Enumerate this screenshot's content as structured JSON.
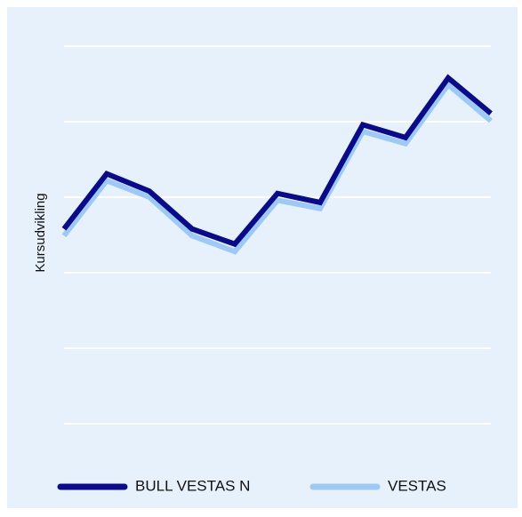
{
  "chart_data": {
    "type": "line",
    "y_label": "Kursudvikling",
    "categories": [
      null,
      null,
      null,
      null,
      null,
      null,
      null,
      null,
      null,
      null,
      null
    ],
    "series": [
      {
        "name": "VESTAS",
        "color": "#9ccaf5",
        "values": [
          2.49,
          3.22,
          3.0,
          2.49,
          2.28,
          2.96,
          2.85,
          3.87,
          3.71,
          4.49,
          4.01
        ]
      },
      {
        "name": "BULL VESTAS N",
        "color": "#0a0a8c",
        "values": [
          2.58,
          3.31,
          3.08,
          2.58,
          2.38,
          3.05,
          2.93,
          3.96,
          3.79,
          4.58,
          4.11
        ]
      }
    ],
    "ylim": [
      0,
      5
    ],
    "yticks": [
      0,
      1,
      2,
      3,
      4,
      5
    ],
    "grid": true
  }
}
